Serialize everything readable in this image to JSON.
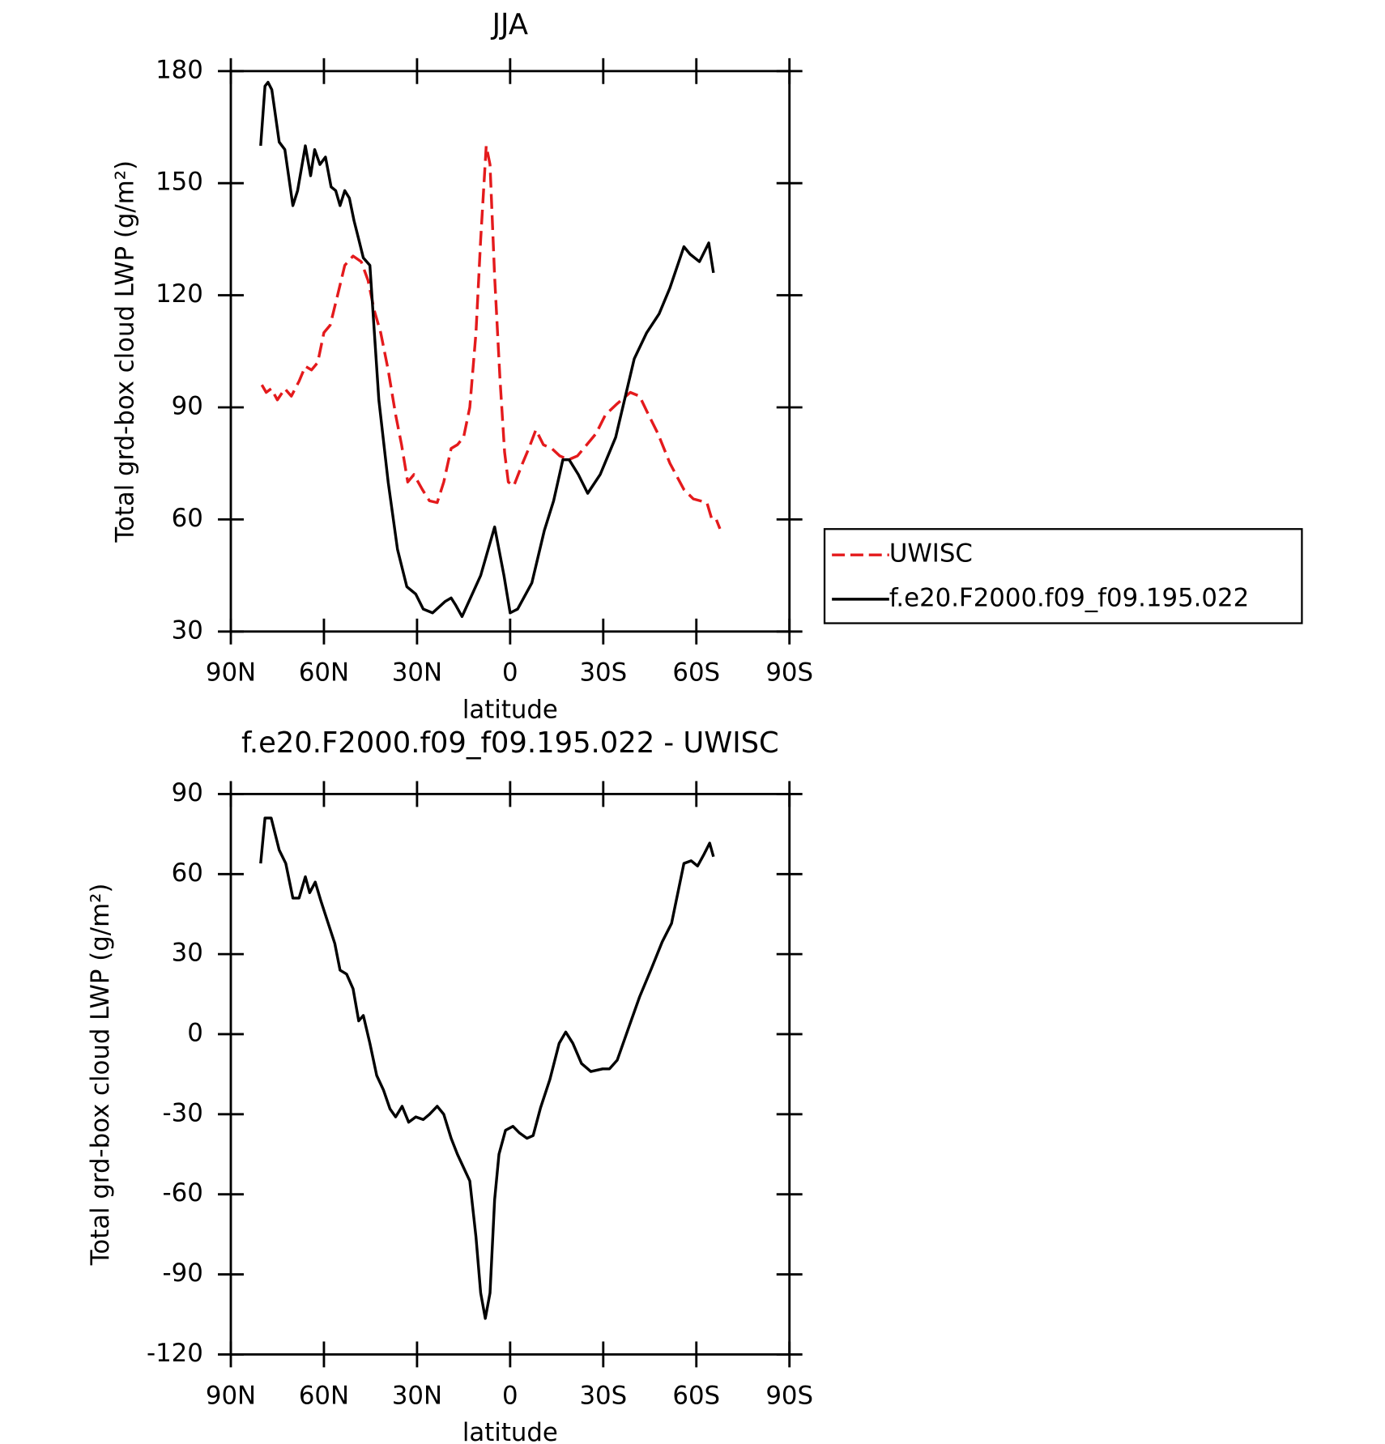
{
  "chart_data": [
    {
      "type": "line",
      "title": "JJA",
      "xlabel": "latitude",
      "ylabel": "Total grd-box cloud LWP (g/m²)",
      "xlim": [
        90,
        -90
      ],
      "xticks": [
        {
          "value": 90,
          "label": "90N"
        },
        {
          "value": 60,
          "label": "60N"
        },
        {
          "value": 30,
          "label": "30N"
        },
        0,
        {
          "value": -30,
          "label": "30S"
        },
        {
          "value": -60,
          "label": "60S"
        },
        {
          "value": -90,
          "label": "90S"
        }
      ],
      "ylim": [
        30,
        180
      ],
      "yticks": [
        30,
        60,
        90,
        120,
        150,
        180
      ],
      "legend": "right",
      "series": [
        {
          "name": "UWISC",
          "color": "#e41a1c",
          "dashed": true,
          "x": [
            80,
            78.6,
            77,
            75,
            72.6,
            70.5,
            68,
            66,
            64,
            62,
            60,
            58,
            55.6,
            53.3,
            50.6,
            48,
            45.8,
            43.8,
            41.7,
            39.3,
            36.9,
            35,
            33,
            31,
            28.3,
            26,
            23.5,
            21.4,
            19,
            17,
            15,
            13,
            11,
            9.5,
            7.7,
            6.5,
            5,
            3.3,
            1.8,
            0.6,
            -1.2,
            -4,
            -6,
            -8.3,
            -10.7,
            -13.4,
            -16,
            -18.8,
            -21.7,
            -24.7,
            -27.7,
            -30.7,
            -34.5,
            -38.7,
            -41.7,
            -44,
            -47.6,
            -51.5,
            -56,
            -59,
            -63.4,
            -65,
            -66.4,
            -67.6
          ],
          "values": [
            96,
            94,
            95,
            92,
            95,
            93,
            97,
            101,
            100,
            102,
            110,
            112,
            120,
            128,
            130.5,
            129,
            124,
            116,
            110,
            100,
            88,
            80,
            70,
            72,
            68,
            65,
            64.5,
            70,
            79,
            80,
            82,
            90,
            110,
            135,
            160,
            155,
            125,
            98,
            78,
            70,
            69,
            75,
            79,
            84,
            80,
            79,
            77,
            76,
            77,
            80,
            83,
            88,
            91,
            94,
            93,
            89,
            83,
            75,
            68,
            65.5,
            64.5,
            60,
            60,
            57.5
          ]
        },
        {
          "name": "f.e20.F2000.f09_f09.195.022",
          "color": "#000000",
          "dashed": false,
          "x": [
            80.4,
            79,
            78,
            76.8,
            74.4,
            72.6,
            70,
            68.5,
            66,
            64.3,
            63,
            61.3,
            59.5,
            57.7,
            56.2,
            54.8,
            53.3,
            51.8,
            50.3,
            48.8,
            47.3,
            45.2,
            42.3,
            39.3,
            36.3,
            33.3,
            30.4,
            28,
            25,
            21,
            19,
            17.5,
            15.5,
            9.5,
            5,
            2,
            0,
            -2.4,
            -7,
            -11,
            -14,
            -17,
            -19,
            -22,
            -25,
            -29,
            -34,
            -40,
            -44,
            -48,
            -51.5,
            -56,
            -58,
            -61,
            -64,
            -65.5
          ],
          "values": [
            160,
            176,
            177,
            175,
            161,
            159,
            144,
            148,
            160,
            152,
            159,
            155,
            157,
            149,
            148,
            144,
            148,
            146,
            140,
            135,
            130,
            128,
            92,
            70,
            52,
            42,
            40,
            36,
            35,
            38,
            39,
            37,
            34,
            45,
            58,
            45,
            35,
            36,
            43,
            57,
            65,
            76,
            76,
            72,
            67,
            72,
            82,
            103,
            110,
            115,
            122,
            133,
            131,
            129,
            134,
            126
          ]
        }
      ]
    },
    {
      "type": "line",
      "title": "f.e20.F2000.f09_f09.195.022 - UWISC",
      "xlabel": "latitude",
      "ylabel": "Total grd-box cloud LWP (g/m²)",
      "xlim": [
        90,
        -90
      ],
      "xticks": [
        {
          "value": 90,
          "label": "90N"
        },
        {
          "value": 60,
          "label": "60N"
        },
        {
          "value": 30,
          "label": "30N"
        },
        0,
        {
          "value": -30,
          "label": "30S"
        },
        {
          "value": -60,
          "label": "60S"
        },
        {
          "value": -90,
          "label": "90S"
        }
      ],
      "ylim": [
        -120,
        90
      ],
      "yticks": [
        -120,
        -90,
        -60,
        -30,
        0,
        30,
        60,
        90
      ],
      "series": [
        {
          "color": "#000000",
          "dashed": false,
          "x": [
            80.4,
            79,
            77,
            74.4,
            72.3,
            70,
            68,
            66,
            64.6,
            62.8,
            61,
            58.6,
            56.5,
            54.8,
            52.7,
            50.6,
            48.8,
            47.3,
            45.2,
            43,
            40.8,
            38.7,
            36.9,
            34.8,
            32.7,
            30.4,
            28,
            26,
            23.5,
            21.4,
            19,
            17,
            15,
            13,
            11,
            9.5,
            8,
            6.5,
            5,
            3.6,
            1.5,
            -0.9,
            -3,
            -5.4,
            -7.4,
            -9.8,
            -12.8,
            -15.8,
            -17.9,
            -20.2,
            -23,
            -26,
            -29.8,
            -32,
            -34.5,
            -38,
            -41.7,
            -45.5,
            -49,
            -52,
            -56,
            -58.3,
            -60.4,
            -62.5,
            -64.3,
            -65.5
          ],
          "values": [
            64,
            81,
            81,
            69,
            64,
            51,
            51,
            59,
            53,
            57,
            50,
            41.5,
            34,
            24,
            22.5,
            17,
            5,
            7,
            -3.4,
            -15.5,
            -21,
            -28,
            -31,
            -27,
            -33,
            -31,
            -32,
            -30,
            -27,
            -30,
            -39,
            -45,
            -50,
            -55,
            -76,
            -97,
            -106.5,
            -97,
            -62,
            -45,
            -36,
            -34.5,
            -37,
            -39,
            -38,
            -27.6,
            -17,
            -3.4,
            0.8,
            -3.4,
            -11,
            -14,
            -13,
            -13,
            -9.7,
            1.8,
            14,
            24.5,
            34.6,
            41.5,
            64,
            65,
            63,
            67.5,
            71.6,
            66.5
          ]
        }
      ]
    }
  ]
}
